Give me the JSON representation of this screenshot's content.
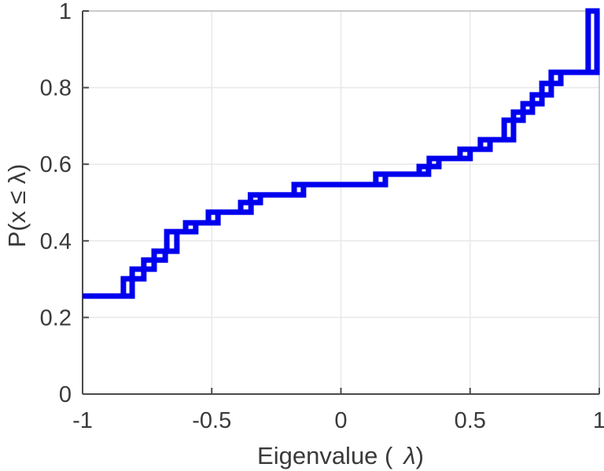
{
  "colors": {
    "line": "#0000EE",
    "axis_dark": "#4a4a4a",
    "axis_light": "#b8b8b8",
    "grid": "#e8e8e8",
    "text": "#3a3a3a",
    "background": "#ffffff"
  },
  "chart_data": {
    "type": "step",
    "subtype": "empirical-cdf",
    "title": "",
    "xlabel_parts": [
      "Eigenvalue (",
      "λ",
      ")"
    ],
    "ylabel": "P(x ≤ λ)",
    "xlim": [
      -1,
      1
    ],
    "ylim": [
      0,
      1
    ],
    "grid": true,
    "legend": "none",
    "line_width": 7,
    "x_ticks": [
      {
        "v": -1,
        "label": "-1"
      },
      {
        "v": -0.5,
        "label": "-0.5"
      },
      {
        "v": 0,
        "label": "0"
      },
      {
        "v": 0.5,
        "label": "0.5"
      },
      {
        "v": 1,
        "label": "1"
      }
    ],
    "y_ticks": [
      {
        "v": 0,
        "label": "0"
      },
      {
        "v": 0.2,
        "label": "0.2"
      },
      {
        "v": 0.4,
        "label": "0.4"
      },
      {
        "v": 0.6,
        "label": "0.6"
      },
      {
        "v": 0.8,
        "label": "0.8"
      },
      {
        "v": 1,
        "label": "1"
      }
    ],
    "start_point": {
      "x": -1,
      "f": 0.256
    },
    "transitions_format": [
      "x_left_wall",
      "x_right_wall",
      "f_before",
      "f_after"
    ],
    "transitions": [
      [
        -0.842,
        -0.808,
        0.256,
        0.301
      ],
      [
        -0.808,
        -0.763,
        0.301,
        0.326
      ],
      [
        -0.763,
        -0.723,
        0.326,
        0.35
      ],
      [
        -0.723,
        -0.68,
        0.35,
        0.373
      ],
      [
        -0.674,
        -0.635,
        0.373,
        0.424
      ],
      [
        -0.601,
        -0.562,
        0.424,
        0.447
      ],
      [
        -0.513,
        -0.476,
        0.447,
        0.475
      ],
      [
        -0.388,
        -0.348,
        0.475,
        0.5
      ],
      [
        -0.35,
        -0.312,
        0.5,
        0.52
      ],
      [
        -0.181,
        -0.145,
        0.52,
        0.547
      ],
      [
        0.135,
        0.172,
        0.547,
        0.574
      ],
      [
        0.303,
        0.339,
        0.574,
        0.594
      ],
      [
        0.342,
        0.379,
        0.594,
        0.615
      ],
      [
        0.461,
        0.5,
        0.615,
        0.639
      ],
      [
        0.54,
        0.577,
        0.639,
        0.664
      ],
      [
        0.632,
        0.668,
        0.664,
        0.715
      ],
      [
        0.668,
        0.705,
        0.715,
        0.736
      ],
      [
        0.705,
        0.741,
        0.736,
        0.758
      ],
      [
        0.741,
        0.778,
        0.758,
        0.781
      ],
      [
        0.778,
        0.814,
        0.781,
        0.811
      ],
      [
        0.814,
        0.851,
        0.811,
        0.84
      ],
      [
        0.957,
        0.991,
        0.84,
        1.0
      ]
    ]
  }
}
